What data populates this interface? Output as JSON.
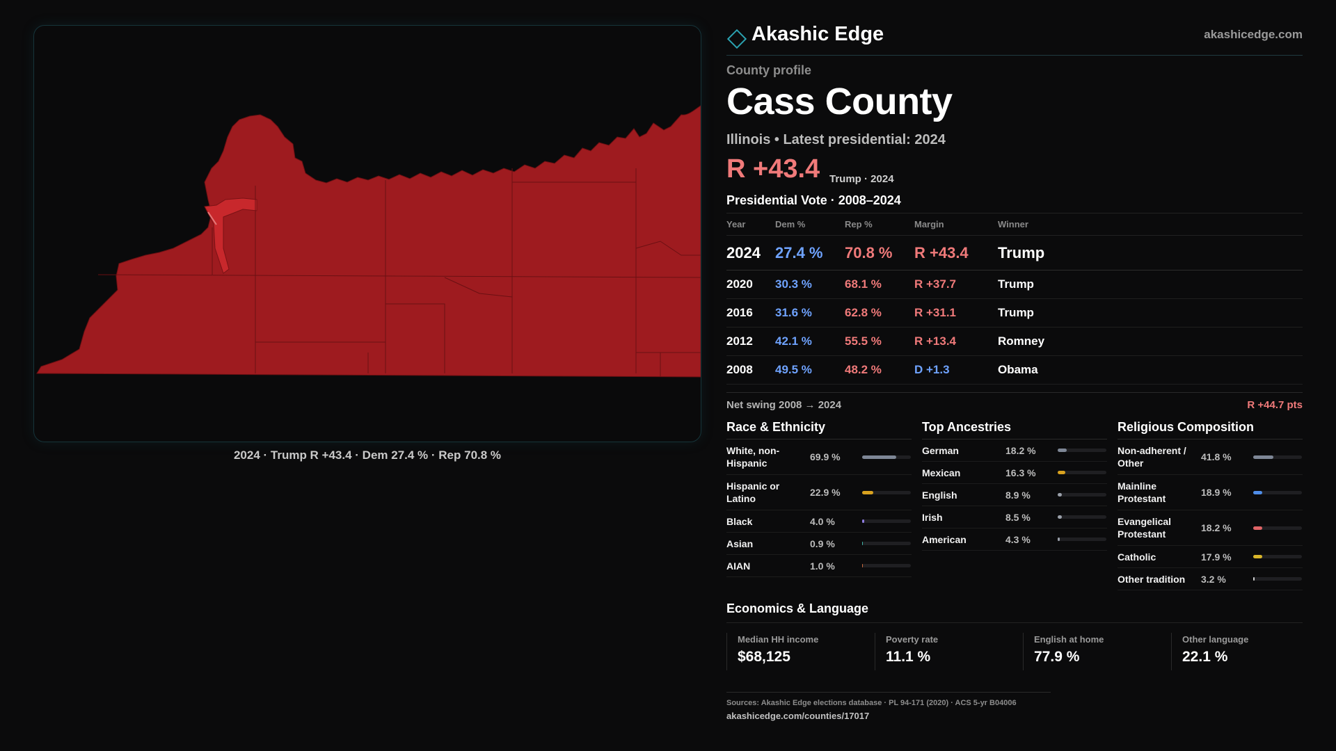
{
  "brand": {
    "name": "Akashic Edge",
    "url": "akashicedge.com"
  },
  "profile": {
    "eyebrow": "County profile",
    "county": "Cass County",
    "subtitle": "Illinois • Latest presidential: 2024",
    "margin": "R +43.4",
    "margin_note": "Trump · 2024"
  },
  "map": {
    "caption": "2024 · Trump R +43.4 · Dem 27.4 % · Rep 70.8 %",
    "fill_color": "#9e1b1f",
    "border_color": "#6b1013"
  },
  "vote": {
    "label": "Presidential Vote · 2008–2024",
    "headers": {
      "year": "Year",
      "dem": "Dem %",
      "rep": "Rep %",
      "margin": "Margin",
      "winner": "Winner"
    },
    "rows": [
      {
        "year": "2024",
        "dem": "27.4 %",
        "rep": "70.8 %",
        "margin": "R +43.4",
        "winner": "Trump"
      },
      {
        "year": "2020",
        "dem": "30.3 %",
        "rep": "68.1 %",
        "margin": "R +37.7",
        "winner": "Trump"
      },
      {
        "year": "2016",
        "dem": "31.6 %",
        "rep": "62.8 %",
        "margin": "R +31.1",
        "winner": "Trump"
      },
      {
        "year": "2012",
        "dem": "42.1 %",
        "rep": "55.5 %",
        "margin": "R +13.4",
        "winner": "Romney"
      },
      {
        "year": "2008",
        "dem": "49.5 %",
        "rep": "48.2 %",
        "margin": "D +1.3",
        "winner": "Obama"
      }
    ],
    "swing_label": "Net swing 2008 → 2024",
    "swing_value": "R +44.7 pts"
  },
  "race": {
    "label": "Race & Ethnicity",
    "items": [
      {
        "name": "White, non-Hispanic",
        "value": "69.9 %",
        "pct": 69.9,
        "color": "#7e8796"
      },
      {
        "name": "Hispanic or Latino",
        "value": "22.9 %",
        "pct": 22.9,
        "color": "#d9a21f"
      },
      {
        "name": "Black",
        "value": "4.0 %",
        "pct": 4.0,
        "color": "#8f7de0"
      },
      {
        "name": "Asian",
        "value": "0.9 %",
        "pct": 0.9,
        "color": "#3fb3a6"
      },
      {
        "name": "AIAN",
        "value": "1.0 %",
        "pct": 1.0,
        "color": "#c96a3c"
      }
    ]
  },
  "ancestry": {
    "label": "Top Ancestries",
    "items": [
      {
        "name": "German",
        "value": "18.2 %",
        "pct": 18.2,
        "color": "#7e8796"
      },
      {
        "name": "Mexican",
        "value": "16.3 %",
        "pct": 16.3,
        "color": "#d9a21f"
      },
      {
        "name": "English",
        "value": "8.9 %",
        "pct": 8.9,
        "color": "#9aa0aa"
      },
      {
        "name": "Irish",
        "value": "8.5 %",
        "pct": 8.5,
        "color": "#9aa0aa"
      },
      {
        "name": "American",
        "value": "4.3 %",
        "pct": 4.3,
        "color": "#9aa0aa"
      }
    ]
  },
  "religion": {
    "label": "Religious Composition",
    "items": [
      {
        "name": "Non-adherent / Other",
        "value": "41.8 %",
        "pct": 41.8,
        "color": "#7e8796"
      },
      {
        "name": "Mainline Protestant",
        "value": "18.9 %",
        "pct": 18.9,
        "color": "#4f8de8"
      },
      {
        "name": "Evangelical Protestant",
        "value": "18.2 %",
        "pct": 18.2,
        "color": "#e06466"
      },
      {
        "name": "Catholic",
        "value": "17.9 %",
        "pct": 17.9,
        "color": "#d9b62a"
      },
      {
        "name": "Other tradition",
        "value": "3.2 %",
        "pct": 3.2,
        "color": "#cfcfcf"
      }
    ]
  },
  "economics": {
    "label": "Economics & Language",
    "items": [
      {
        "key": "Median HH income",
        "value": "$68,125"
      },
      {
        "key": "Poverty rate",
        "value": "11.1 %"
      },
      {
        "key": "English at home",
        "value": "77.9 %"
      },
      {
        "key": "Other language",
        "value": "22.1 %"
      }
    ]
  },
  "sources": {
    "line": "Sources: Akashic Edge elections database · PL 94-171 (2020) · ACS 5-yr B04006",
    "link": "akashicedge.com/counties/17017"
  }
}
